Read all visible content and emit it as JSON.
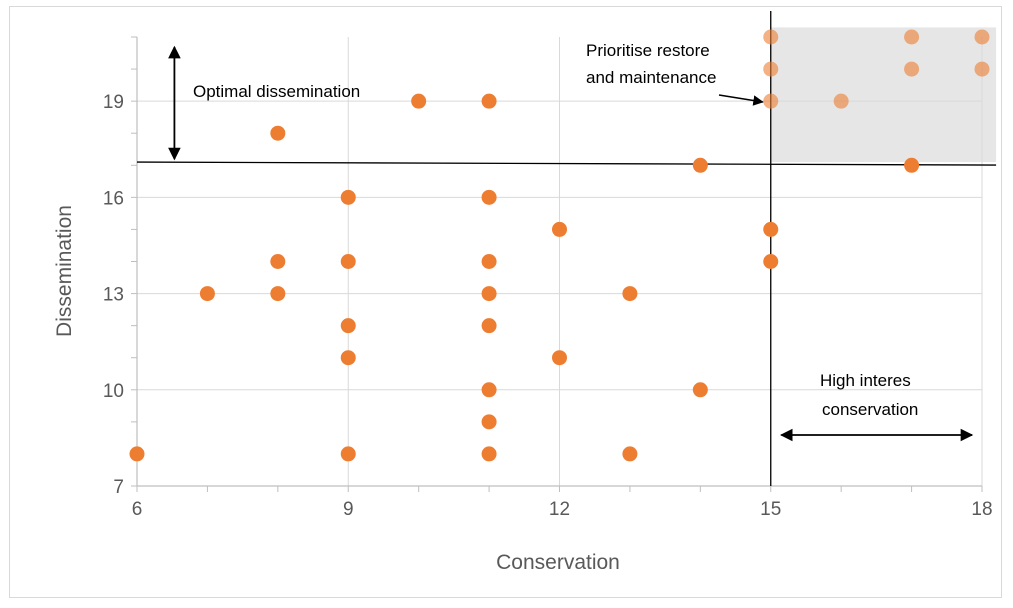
{
  "chart_data": {
    "type": "scatter",
    "title": "",
    "xlabel": "Conservation",
    "ylabel": "Dissemination",
    "xlim": [
      6,
      18
    ],
    "ylim": [
      7,
      21
    ],
    "x_ticks": [
      6,
      9,
      12,
      15,
      18
    ],
    "y_ticks": [
      7,
      10,
      13,
      16,
      19
    ],
    "grid": true,
    "marker_color": "#ED7D31",
    "highlight_region": {
      "x_min": 15,
      "x_max": 18.2,
      "y_min": 17.1,
      "y_max": 21.3,
      "color": "#e6e6e6"
    },
    "threshold_lines": {
      "x": 15,
      "y": 17.1
    },
    "series": [
      {
        "points": [
          [
            6,
            8
          ],
          [
            7,
            13
          ],
          [
            8,
            18
          ],
          [
            8,
            14
          ],
          [
            8,
            13
          ],
          [
            9,
            16
          ],
          [
            9,
            14
          ],
          [
            9,
            12
          ],
          [
            9,
            11
          ],
          [
            9,
            8
          ],
          [
            10,
            19
          ],
          [
            11,
            19
          ],
          [
            11,
            16
          ],
          [
            11,
            14
          ],
          [
            11,
            13
          ],
          [
            11,
            12
          ],
          [
            11,
            10
          ],
          [
            11,
            9
          ],
          [
            11,
            8
          ],
          [
            12,
            15
          ],
          [
            12,
            11
          ],
          [
            13,
            13
          ],
          [
            13,
            8
          ],
          [
            14,
            17
          ],
          [
            14,
            10
          ],
          [
            15,
            21
          ],
          [
            15,
            20
          ],
          [
            15,
            19
          ],
          [
            15,
            15
          ],
          [
            15,
            14
          ],
          [
            16,
            19
          ],
          [
            17,
            21
          ],
          [
            17,
            20
          ],
          [
            17,
            17
          ],
          [
            18,
            21
          ],
          [
            18,
            20
          ]
        ]
      }
    ],
    "annotations": [
      {
        "id": "optimal",
        "text": "Optimal dissemination"
      },
      {
        "id": "prioritise_1",
        "text": "Prioritise restore"
      },
      {
        "id": "prioritise_2",
        "text": "and maintenance"
      },
      {
        "id": "high_1",
        "text": "High interes"
      },
      {
        "id": "high_2",
        "text": "conservation"
      }
    ]
  }
}
